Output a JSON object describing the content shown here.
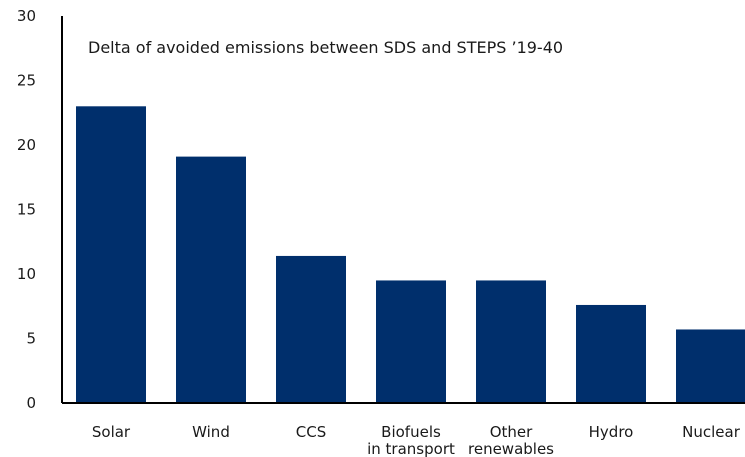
{
  "chart_data": {
    "type": "bar",
    "title": "Delta of avoided emissions between SDS and STEPS ’19-40",
    "xlabel": "",
    "ylabel": "",
    "categories": [
      [
        "Solar"
      ],
      [
        "Wind"
      ],
      [
        "CCS"
      ],
      [
        "Biofuels",
        "in transport"
      ],
      [
        "Other",
        "renewables"
      ],
      [
        "Hydro"
      ],
      [
        "Nuclear"
      ]
    ],
    "values": [
      23,
      19.1,
      11.4,
      9.5,
      9.5,
      7.6,
      5.7
    ],
    "ylim": [
      0,
      30
    ],
    "yticks": [
      0,
      5,
      10,
      15,
      20,
      25,
      30
    ],
    "grid": false,
    "legend": "none",
    "bar_color": "#002f6c",
    "axis_color": "#000000"
  }
}
